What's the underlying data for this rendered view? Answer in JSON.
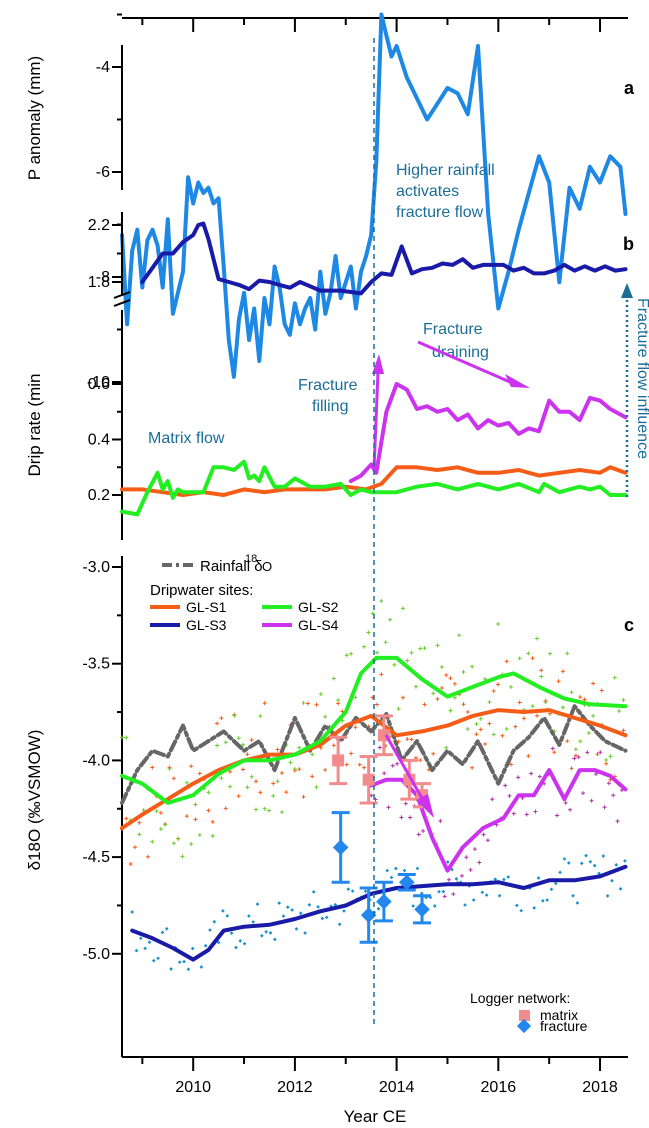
{
  "chart_data": [
    {
      "type": "line",
      "panel_label": "a",
      "ylabel": "P anomaly (mm)",
      "ylim": [
        -10.8,
        -2.4
      ],
      "xlim": [
        2008.6,
        2018.55
      ],
      "y_ticks": [
        -10,
        -8,
        -6,
        -4
      ],
      "y_tick_labels": [
        "-10",
        "-8",
        "-6",
        "-4"
      ],
      "annotation": "Higher rainfall activates fracture flow",
      "series": [
        {
          "name": "",
          "color": "#1e88e5",
          "x": [
            2008.6,
            2008.7,
            2008.8,
            2008.9,
            2009.0,
            2009.1,
            2009.2,
            2009.3,
            2009.4,
            2009.5,
            2009.6,
            2009.7,
            2009.8,
            2009.9,
            2010.0,
            2010.1,
            2010.2,
            2010.3,
            2010.4,
            2010.5,
            2010.6,
            2010.7,
            2010.8,
            2010.9,
            2011.0,
            2011.1,
            2011.2,
            2011.3,
            2011.4,
            2011.5,
            2011.6,
            2011.7,
            2011.8,
            2011.9,
            2012.0,
            2012.1,
            2012.2,
            2012.3,
            2012.4,
            2012.5,
            2012.6,
            2012.7,
            2012.8,
            2012.9,
            2013.0,
            2013.1,
            2013.2,
            2013.3,
            2013.4,
            2013.5,
            2013.6,
            2013.7,
            2013.8,
            2013.9,
            2014.0,
            2014.2,
            2014.4,
            2014.6,
            2014.8,
            2015.0,
            2015.2,
            2015.4,
            2015.6,
            2015.8,
            2016.0,
            2016.2,
            2016.4,
            2016.6,
            2016.8,
            2017.0,
            2017.2,
            2017.4,
            2017.6,
            2017.8,
            2018.0,
            2018.2,
            2018.4,
            2018.5
          ],
          "y": [
            -7.2,
            -8.9,
            -7.5,
            -7.1,
            -8.2,
            -7.3,
            -7.1,
            -7.4,
            -8.2,
            -6.9,
            -8.7,
            -8.3,
            -7.9,
            -6.1,
            -6.6,
            -6.2,
            -6.4,
            -6.3,
            -6.6,
            -6.5,
            -7.8,
            -9.2,
            -9.9,
            -8.8,
            -8.3,
            -9.2,
            -8.6,
            -9.6,
            -8.4,
            -8.9,
            -7.8,
            -8.2,
            -8.9,
            -9.1,
            -8.5,
            -8.9,
            -8.6,
            -8.4,
            -9.0,
            -7.9,
            -8.7,
            -8.3,
            -7.6,
            -8.4,
            -8.1,
            -7.8,
            -8.6,
            -7.9,
            -7.6,
            -7.2,
            -5.8,
            -3.0,
            -3.4,
            -3.8,
            -3.6,
            -4.2,
            -4.6,
            -5.0,
            -4.7,
            -4.4,
            -4.5,
            -4.9,
            -3.6,
            -6.8,
            -8.6,
            -7.9,
            -7.1,
            -6.4,
            -5.7,
            -6.2,
            -8.1,
            -6.3,
            -6.7,
            -5.9,
            -6.2,
            -5.7,
            -5.9,
            -6.8
          ]
        }
      ]
    },
    {
      "type": "line",
      "panel_label": "b",
      "ylabel": "Drip rate (min-1)",
      "y_ticks_upper": [
        1.8,
        2.2
      ],
      "y_ticks_lower": [
        0.2,
        0.4,
        0.6
      ],
      "xlim": [
        2008.6,
        2018.55
      ],
      "annotations": [
        "Matrix flow",
        "Fracture filling",
        "Fracture draining",
        "Fracture flow influence"
      ],
      "series": [
        {
          "name": "GL-S3",
          "color": "#1a1aa8",
          "axis": "upper",
          "x": [
            2009.0,
            2009.2,
            2009.4,
            2009.6,
            2009.8,
            2010.0,
            2010.1,
            2010.2,
            2010.3,
            2010.5,
            2010.7,
            2010.9,
            2011.1,
            2011.3,
            2011.5,
            2011.7,
            2011.9,
            2012.1,
            2012.3,
            2012.5,
            2012.7,
            2012.9,
            2013.1,
            2013.3,
            2013.5,
            2013.7,
            2013.9,
            2014.1,
            2014.3,
            2014.5,
            2014.7,
            2014.9,
            2015.1,
            2015.3,
            2015.5,
            2015.7,
            2015.9,
            2016.1,
            2016.3,
            2016.5,
            2016.7,
            2016.9,
            2017.1,
            2017.3,
            2017.5,
            2017.7,
            2017.9,
            2018.1,
            2018.3,
            2018.5
          ],
          "y": [
            1.8,
            1.9,
            2.0,
            2.0,
            2.08,
            2.13,
            2.2,
            2.21,
            2.1,
            1.82,
            1.8,
            1.78,
            1.75,
            1.81,
            1.8,
            1.78,
            1.76,
            1.8,
            1.77,
            1.74,
            1.74,
            1.74,
            1.73,
            1.72,
            1.8,
            1.86,
            1.85,
            2.05,
            1.86,
            1.89,
            1.9,
            1.93,
            1.92,
            1.96,
            1.9,
            1.92,
            1.92,
            1.92,
            1.88,
            1.9,
            1.86,
            1.86,
            1.88,
            1.92,
            1.88,
            1.91,
            1.88,
            1.91,
            1.88,
            1.89
          ]
        },
        {
          "name": "GL-S1",
          "color": "#f45c17",
          "axis": "lower",
          "x": [
            2008.6,
            2009.0,
            2009.4,
            2009.8,
            2010.2,
            2010.6,
            2011.0,
            2011.4,
            2011.8,
            2012.2,
            2012.6,
            2013.0,
            2013.4,
            2013.7,
            2014.0,
            2014.4,
            2014.8,
            2015.2,
            2015.6,
            2016.0,
            2016.4,
            2016.8,
            2017.2,
            2017.6,
            2018.0,
            2018.2,
            2018.5
          ],
          "y": [
            0.22,
            0.22,
            0.21,
            0.2,
            0.21,
            0.2,
            0.22,
            0.21,
            0.22,
            0.22,
            0.22,
            0.23,
            0.22,
            0.24,
            0.3,
            0.3,
            0.29,
            0.3,
            0.28,
            0.28,
            0.29,
            0.27,
            0.28,
            0.29,
            0.28,
            0.3,
            0.28
          ]
        },
        {
          "name": "GL-S2",
          "color": "#22ee22",
          "axis": "lower",
          "x": [
            2008.6,
            2008.9,
            2009.1,
            2009.3,
            2009.4,
            2009.5,
            2009.6,
            2009.7,
            2009.8,
            2010.0,
            2010.2,
            2010.4,
            2010.5,
            2010.6,
            2010.8,
            2011.0,
            2011.1,
            2011.2,
            2011.3,
            2011.4,
            2011.6,
            2011.8,
            2012.0,
            2012.3,
            2012.6,
            2012.9,
            2013.1,
            2013.3,
            2013.5,
            2013.7,
            2014.0,
            2014.4,
            2014.8,
            2015.2,
            2015.6,
            2016.0,
            2016.4,
            2016.8,
            2016.9,
            2017.2,
            2017.6,
            2017.8,
            2018.0,
            2018.2,
            2018.5
          ],
          "y": [
            0.14,
            0.13,
            0.21,
            0.28,
            0.22,
            0.25,
            0.19,
            0.22,
            0.21,
            0.21,
            0.21,
            0.3,
            0.3,
            0.3,
            0.29,
            0.32,
            0.26,
            0.27,
            0.25,
            0.3,
            0.23,
            0.23,
            0.26,
            0.23,
            0.23,
            0.24,
            0.2,
            0.22,
            0.21,
            0.21,
            0.21,
            0.23,
            0.24,
            0.22,
            0.24,
            0.22,
            0.24,
            0.21,
            0.24,
            0.21,
            0.23,
            0.22,
            0.23,
            0.2,
            0.2
          ]
        },
        {
          "name": "GL-S4",
          "color": "#cc33ee",
          "axis": "lower",
          "x": [
            2013.1,
            2013.3,
            2013.5,
            2013.6,
            2013.8,
            2014.0,
            2014.2,
            2014.4,
            2014.6,
            2014.8,
            2015.0,
            2015.2,
            2015.4,
            2015.6,
            2015.8,
            2016.0,
            2016.2,
            2016.4,
            2016.6,
            2016.8,
            2017.0,
            2017.2,
            2017.4,
            2017.6,
            2017.8,
            2018.0,
            2018.2,
            2018.5
          ],
          "y": [
            0.25,
            0.27,
            0.31,
            0.28,
            0.5,
            0.6,
            0.58,
            0.51,
            0.52,
            0.5,
            0.51,
            0.47,
            0.49,
            0.44,
            0.47,
            0.45,
            0.46,
            0.42,
            0.44,
            0.43,
            0.54,
            0.5,
            0.5,
            0.47,
            0.55,
            0.54,
            0.51,
            0.48
          ]
        }
      ]
    },
    {
      "type": "line",
      "panel_label": "c",
      "ylabel": "δ18O (‰VSMOW)",
      "ylim": [
        -5.12,
        -2.95
      ],
      "xlim": [
        2008.6,
        2018.55
      ],
      "xlabel": "Year CE",
      "x_ticks": [
        2010,
        2012,
        2014,
        2016,
        2018
      ],
      "x_tick_labels": [
        "2010",
        "2012",
        "2014",
        "2016",
        "2018"
      ],
      "y_ticks": [
        -5.0,
        -4.5,
        -4.0,
        -3.5,
        -3.0
      ],
      "y_tick_labels": [
        "-5.0",
        "-4.5",
        "-4.0",
        "-3.5",
        "-3.0"
      ],
      "legend": {
        "rainfall_label": "Rainfall δ18O",
        "dripwater_title": "Dripwater sites:",
        "sites": [
          "GL-S1",
          "GL-S2",
          "GL-S3",
          "GL-S4"
        ],
        "logger_title": "Logger network:",
        "logger_items": [
          "matrix",
          "fracture"
        ]
      },
      "series": [
        {
          "name": "Rainfall δ18O",
          "color": "#666666",
          "x": [
            2008.6,
            2008.9,
            2009.2,
            2009.5,
            2009.8,
            2010.0,
            2010.3,
            2010.6,
            2011.0,
            2011.3,
            2011.6,
            2012.0,
            2012.3,
            2012.6,
            2012.9,
            2013.2,
            2013.5,
            2013.8,
            2014.1,
            2014.4,
            2014.7,
            2015.0,
            2015.3,
            2015.6,
            2016.0,
            2016.3,
            2016.6,
            2016.9,
            2017.2,
            2017.5,
            2017.8,
            2018.1,
            2018.5
          ],
          "y": [
            -4.22,
            -4.05,
            -3.95,
            -3.98,
            -3.82,
            -3.95,
            -3.9,
            -3.85,
            -3.95,
            -3.9,
            -4.05,
            -3.78,
            -3.95,
            -3.82,
            -3.9,
            -3.78,
            -3.85,
            -3.76,
            -4.0,
            -3.9,
            -4.05,
            -3.95,
            -4.02,
            -3.9,
            -4.12,
            -3.95,
            -3.88,
            -3.78,
            -3.92,
            -3.72,
            -3.82,
            -3.9,
            -3.95
          ]
        },
        {
          "name": "GL-S1",
          "color": "#f45c17",
          "x": [
            2008.6,
            2009.0,
            2009.5,
            2010.0,
            2010.5,
            2011.0,
            2011.5,
            2012.0,
            2012.5,
            2013.0,
            2013.5,
            2014.0,
            2014.5,
            2015.0,
            2015.5,
            2016.0,
            2016.5,
            2017.0,
            2017.5,
            2018.0,
            2018.5
          ],
          "y": [
            -4.35,
            -4.28,
            -4.2,
            -4.12,
            -4.05,
            -4.0,
            -3.97,
            -3.97,
            -3.92,
            -3.82,
            -3.77,
            -3.87,
            -3.85,
            -3.82,
            -3.77,
            -3.74,
            -3.75,
            -3.74,
            -3.78,
            -3.82,
            -3.87
          ]
        },
        {
          "name": "GL-S2",
          "color": "#22ee22",
          "x": [
            2008.6,
            2009.0,
            2009.5,
            2010.0,
            2010.5,
            2011.0,
            2011.5,
            2012.0,
            2012.5,
            2013.0,
            2013.3,
            2013.6,
            2014.0,
            2014.5,
            2015.0,
            2015.5,
            2016.0,
            2016.3,
            2016.8,
            2017.3,
            2017.8,
            2018.5
          ],
          "y": [
            -4.08,
            -4.12,
            -4.22,
            -4.18,
            -4.07,
            -4.0,
            -4.0,
            -3.97,
            -3.9,
            -3.75,
            -3.55,
            -3.47,
            -3.47,
            -3.58,
            -3.67,
            -3.62,
            -3.57,
            -3.55,
            -3.62,
            -3.68,
            -3.71,
            -3.72
          ]
        },
        {
          "name": "GL-S3",
          "color": "#1a1aa8",
          "x": [
            2008.8,
            2009.2,
            2009.6,
            2010.0,
            2010.3,
            2010.6,
            2011.0,
            2011.5,
            2012.0,
            2012.5,
            2013.0,
            2013.5,
            2014.0,
            2014.5,
            2015.0,
            2015.5,
            2016.0,
            2016.5,
            2017.0,
            2017.5,
            2018.0,
            2018.5
          ],
          "y": [
            -4.88,
            -4.92,
            -4.97,
            -5.03,
            -4.98,
            -4.88,
            -4.86,
            -4.85,
            -4.82,
            -4.78,
            -4.75,
            -4.69,
            -4.66,
            -4.65,
            -4.64,
            -4.64,
            -4.63,
            -4.66,
            -4.62,
            -4.62,
            -4.6,
            -4.55
          ]
        },
        {
          "name": "GL-S4",
          "color": "#cc33ee",
          "x": [
            2013.5,
            2013.8,
            2014.1,
            2014.4,
            2014.7,
            2015.0,
            2015.3,
            2015.7,
            2016.1,
            2016.4,
            2016.7,
            2017.0,
            2017.3,
            2017.6,
            2017.9,
            2018.2,
            2018.5
          ],
          "y": [
            -4.13,
            -4.1,
            -4.1,
            -4.18,
            -4.4,
            -4.57,
            -4.45,
            -4.35,
            -4.3,
            -4.18,
            -4.18,
            -4.05,
            -4.2,
            -4.05,
            -4.05,
            -4.08,
            -4.15
          ]
        }
      ],
      "error_points": [
        {
          "name": "matrix",
          "color": "#f28c8c",
          "x": [
            2012.85,
            2013.45,
            2013.75,
            2014.25,
            2014.5
          ],
          "y": [
            -4.0,
            -4.1,
            -3.87,
            -4.1,
            -4.18
          ],
          "err": [
            0.12,
            0.12,
            0.1,
            0.1,
            0.06
          ]
        },
        {
          "name": "fracture",
          "color": "#2288ee",
          "x": [
            2012.9,
            2013.45,
            2013.75,
            2014.2,
            2014.5
          ],
          "y": [
            -4.45,
            -4.8,
            -4.73,
            -4.63,
            -4.77
          ],
          "err": [
            0.18,
            0.14,
            0.1,
            0.04,
            0.07
          ]
        }
      ]
    }
  ]
}
